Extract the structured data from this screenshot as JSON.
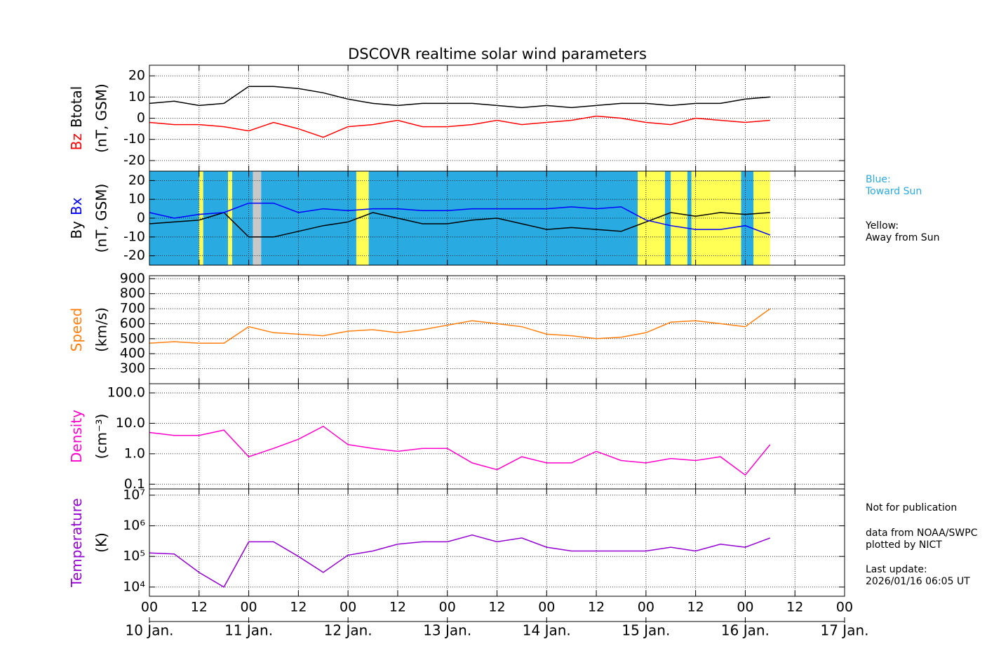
{
  "chart_data": [
    {
      "type": "line",
      "title": "DSCOVR realtime solar wind parameters",
      "x": [
        0,
        6,
        12,
        18,
        24,
        30,
        36,
        42,
        48,
        54,
        60,
        66,
        72,
        78,
        84,
        90,
        96,
        102,
        108,
        114,
        120,
        126,
        132,
        138,
        144,
        150
      ],
      "xlim": [
        0,
        168
      ],
      "xticks": [
        0,
        12,
        24,
        36,
        48,
        60,
        72,
        84,
        96,
        108,
        120,
        132,
        144,
        156,
        168
      ],
      "ylim": [
        -25,
        25
      ],
      "yticks": [
        -20,
        -10,
        0,
        10,
        20
      ],
      "ylabel_unit": "(nT, GSM)",
      "grid": true,
      "series": [
        {
          "name": "Bz",
          "color": "#ff0000",
          "values": [
            -2,
            -3,
            -3,
            -4,
            -6,
            -2,
            -5,
            -9,
            -4,
            -3,
            -1,
            -4,
            -4,
            -3,
            -1,
            -3,
            -2,
            -1,
            1,
            0,
            -2,
            -3,
            0,
            -1,
            -2,
            -1
          ]
        },
        {
          "name": "Btotal",
          "color": "#000000",
          "values": [
            7,
            8,
            6,
            7,
            15,
            15,
            14,
            12,
            9,
            7,
            6,
            7,
            7,
            7,
            6,
            5,
            6,
            5,
            6,
            7,
            7,
            6,
            7,
            7,
            9,
            10
          ]
        }
      ]
    },
    {
      "type": "line",
      "x": [
        0,
        6,
        12,
        18,
        24,
        30,
        36,
        42,
        48,
        54,
        60,
        66,
        72,
        78,
        84,
        90,
        96,
        102,
        108,
        114,
        120,
        126,
        132,
        138,
        144,
        150
      ],
      "xlim": [
        0,
        168
      ],
      "xticks": [
        0,
        12,
        24,
        36,
        48,
        60,
        72,
        84,
        96,
        108,
        120,
        132,
        144,
        156,
        168
      ],
      "ylim": [
        -25,
        25
      ],
      "yticks": [
        -20,
        -10,
        0,
        10,
        20
      ],
      "ylabel_unit": "(nT, GSM)",
      "grid": true,
      "sectors": [
        {
          "x": [
            0,
            12
          ],
          "color": "#29abe2"
        },
        {
          "x": [
            12,
            13
          ],
          "color": "#ffff55"
        },
        {
          "x": [
            13,
            19
          ],
          "color": "#29abe2"
        },
        {
          "x": [
            19,
            20
          ],
          "color": "#ffff55"
        },
        {
          "x": [
            20,
            25
          ],
          "color": "#29abe2"
        },
        {
          "x": [
            25,
            27
          ],
          "color": "#c8c8c8"
        },
        {
          "x": [
            27,
            50
          ],
          "color": "#29abe2"
        },
        {
          "x": [
            50,
            53
          ],
          "color": "#ffff55"
        },
        {
          "x": [
            53,
            118
          ],
          "color": "#29abe2"
        },
        {
          "x": [
            118,
            124.6
          ],
          "color": "#ffff55"
        },
        {
          "x": [
            124.6,
            126
          ],
          "color": "#29abe2"
        },
        {
          "x": [
            126,
            130
          ],
          "color": "#ffff55"
        },
        {
          "x": [
            130,
            131
          ],
          "color": "#29abe2"
        },
        {
          "x": [
            131,
            143
          ],
          "color": "#ffff55"
        },
        {
          "x": [
            143,
            146
          ],
          "color": "#29abe2"
        },
        {
          "x": [
            146,
            150
          ],
          "color": "#ffff55"
        }
      ],
      "sector_legend": [
        {
          "lines": [
            "Blue:",
            "Toward Sun"
          ],
          "color": "#29abe2"
        },
        {
          "lines": [
            "Yellow:",
            "Away from Sun"
          ],
          "color": "#000000"
        }
      ],
      "series": [
        {
          "name": "By",
          "color": "#000000",
          "values": [
            -3,
            -2,
            -1,
            3,
            -10,
            -10,
            -7,
            -4,
            -2,
            3,
            0,
            -3,
            -3,
            -1,
            0,
            -3,
            -6,
            -5,
            -6,
            -7,
            -2,
            3,
            1,
            3,
            2,
            3
          ]
        },
        {
          "name": "Bx",
          "color": "#0000ff",
          "values": [
            3,
            0,
            2,
            3,
            8,
            8,
            3,
            5,
            4,
            5,
            5,
            4,
            4,
            5,
            5,
            5,
            5,
            6,
            5,
            6,
            -1,
            -4,
            -6,
            -6,
            -4,
            -9
          ]
        }
      ]
    },
    {
      "type": "line",
      "x": [
        0,
        6,
        12,
        18,
        24,
        30,
        36,
        42,
        48,
        54,
        60,
        66,
        72,
        78,
        84,
        90,
        96,
        102,
        108,
        114,
        120,
        126,
        132,
        138,
        144,
        150
      ],
      "xlim": [
        0,
        168
      ],
      "xticks": [
        0,
        12,
        24,
        36,
        48,
        60,
        72,
        84,
        96,
        108,
        120,
        132,
        144,
        156,
        168
      ],
      "ylim": [
        200,
        920
      ],
      "yticks": [
        300,
        400,
        500,
        600,
        700,
        800,
        900
      ],
      "ylabel_unit": "(km/s)",
      "grid": true,
      "series": [
        {
          "name": "Speed",
          "color": "#ff7f0e",
          "values": [
            470,
            480,
            470,
            470,
            580,
            540,
            530,
            520,
            550,
            560,
            540,
            560,
            590,
            620,
            600,
            580,
            530,
            520,
            500,
            510,
            540,
            610,
            620,
            600,
            580,
            700
          ]
        }
      ]
    },
    {
      "type": "line",
      "log": true,
      "x": [
        0,
        6,
        12,
        18,
        24,
        30,
        36,
        42,
        48,
        54,
        60,
        66,
        72,
        78,
        84,
        90,
        96,
        102,
        108,
        114,
        120,
        126,
        132,
        138,
        144,
        150
      ],
      "xlim": [
        0,
        168
      ],
      "xticks": [
        0,
        12,
        24,
        36,
        48,
        60,
        72,
        84,
        96,
        108,
        120,
        132,
        144,
        156,
        168
      ],
      "ylim": [
        0.07,
        200
      ],
      "yticks": [
        {
          "value": 0.1,
          "label": "0.1"
        },
        {
          "value": 1,
          "label": "1.0"
        },
        {
          "value": 10,
          "label": "10.0"
        },
        {
          "value": 100,
          "label": "100.0"
        }
      ],
      "ylabel_unit": "(cm⁻³)",
      "grid": true,
      "series": [
        {
          "name": "Density",
          "color": "#ff00cc",
          "values": [
            5,
            4,
            4,
            6,
            0.8,
            1.5,
            3,
            8,
            2,
            1.5,
            1.2,
            1.5,
            1.5,
            0.5,
            0.3,
            0.8,
            0.5,
            0.5,
            1.2,
            0.6,
            0.5,
            0.7,
            0.6,
            0.8,
            0.2,
            2
          ]
        }
      ]
    },
    {
      "type": "line",
      "log": true,
      "x": [
        0,
        6,
        12,
        18,
        24,
        30,
        36,
        42,
        48,
        54,
        60,
        66,
        72,
        78,
        84,
        90,
        96,
        102,
        108,
        114,
        120,
        126,
        132,
        138,
        144,
        150
      ],
      "xlim": [
        0,
        168
      ],
      "xticks": [
        {
          "value": 0,
          "label": "00"
        },
        {
          "value": 12,
          "label": "12"
        },
        {
          "value": 24,
          "label": "00"
        },
        {
          "value": 36,
          "label": "12"
        },
        {
          "value": 48,
          "label": "00"
        },
        {
          "value": 60,
          "label": "12"
        },
        {
          "value": 72,
          "label": "00"
        },
        {
          "value": 84,
          "label": "12"
        },
        {
          "value": 96,
          "label": "00"
        },
        {
          "value": 108,
          "label": "12"
        },
        {
          "value": 120,
          "label": "00"
        },
        {
          "value": 132,
          "label": "12"
        },
        {
          "value": 144,
          "label": "00"
        },
        {
          "value": 156,
          "label": "12"
        },
        {
          "value": 168,
          "label": "00"
        }
      ],
      "xdate_ticks": [
        {
          "value": 0,
          "label": "10 Jan."
        },
        {
          "value": 24,
          "label": "11 Jan."
        },
        {
          "value": 48,
          "label": "12 Jan."
        },
        {
          "value": 72,
          "label": "13 Jan."
        },
        {
          "value": 96,
          "label": "14 Jan."
        },
        {
          "value": 120,
          "label": "15 Jan."
        },
        {
          "value": 144,
          "label": "16 Jan."
        },
        {
          "value": 168,
          "label": "17 Jan."
        }
      ],
      "ylim": [
        5000,
        16000000
      ],
      "yticks": [
        {
          "value": 10000,
          "label": "10⁴"
        },
        {
          "value": 100000,
          "label": "10⁵"
        },
        {
          "value": 1000000,
          "label": "10⁶"
        },
        {
          "value": 10000000,
          "label": "10⁷"
        }
      ],
      "ylabel_unit": "(K)",
      "grid": true,
      "series": [
        {
          "name": "Temperature",
          "color": "#9400d3",
          "values": [
            130000,
            120000,
            30000,
            10000,
            300000,
            300000,
            100000,
            30000,
            110000,
            150000,
            250000,
            300000,
            300000,
            500000,
            300000,
            400000,
            200000,
            150000,
            150000,
            150000,
            150000,
            200000,
            150000,
            250000,
            200000,
            400000
          ]
        }
      ]
    }
  ],
  "notes": [
    "Not for publication",
    "data from NOAA/SWPC",
    "plotted by NICT",
    "Last update:",
    "2026/01/16 06:05 UT"
  ]
}
